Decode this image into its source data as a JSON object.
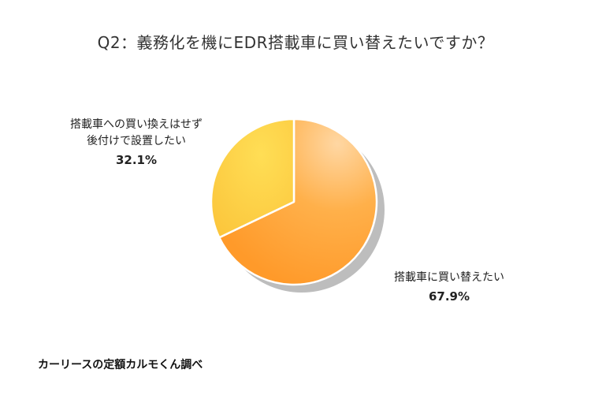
{
  "chart_data": {
    "type": "pie",
    "title": "Q2：義務化を機にEDR搭載車に買い替えたいですか？",
    "slices": [
      {
        "label_lines": [
          "搭載車に買い替えたい"
        ],
        "value": 67.9,
        "value_label": "67.9%",
        "color_light": "#ffb347",
        "color_dark": "#ff9a2e"
      },
      {
        "label_lines": [
          "搭載車への買い換えはせず",
          "後付けで設置したい"
        ],
        "value": 32.1,
        "value_label": "32.1%",
        "color_light": "#ffd84a",
        "color_dark": "#fcc43a"
      }
    ],
    "start_angle": "12 o'clock",
    "direction": "clockwise",
    "legend": "none (direct labels)"
  },
  "footer": {
    "source": "カーリースの定額カルモくん調べ"
  }
}
